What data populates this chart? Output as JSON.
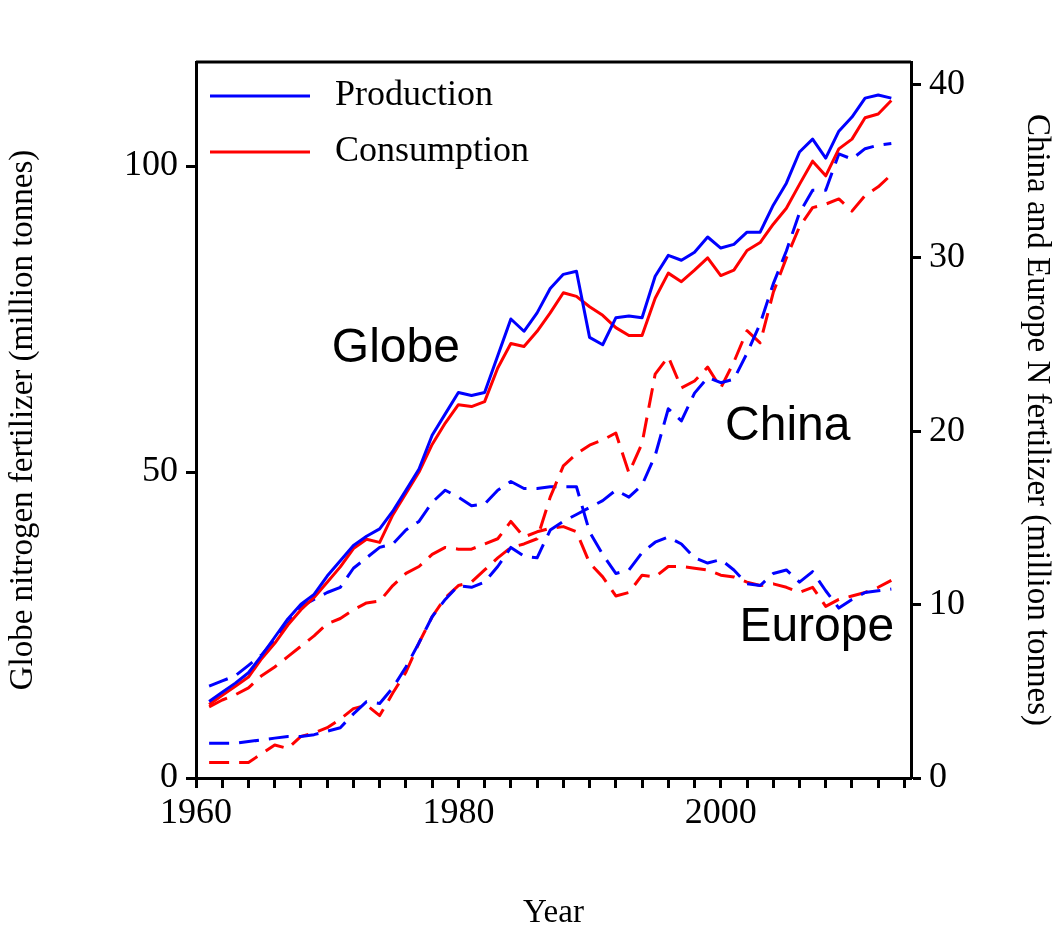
{
  "chart_data": {
    "type": "line",
    "xlabel": "Year",
    "ylabel": "Globe nitrogen fertilizer (million tonnes)",
    "y2label": "China and Europe N fertilizer (million tonnes)",
    "x": [
      1961,
      1962,
      1963,
      1964,
      1965,
      1966,
      1967,
      1968,
      1969,
      1970,
      1971,
      1972,
      1973,
      1974,
      1975,
      1976,
      1977,
      1978,
      1979,
      1980,
      1981,
      1982,
      1983,
      1984,
      1985,
      1986,
      1987,
      1988,
      1989,
      1990,
      1991,
      1992,
      1993,
      1994,
      1995,
      1996,
      1997,
      1998,
      1999,
      2000,
      2001,
      2002,
      2003,
      2004,
      2005,
      2006,
      2007,
      2008,
      2009,
      2010,
      2011,
      2012,
      2013
    ],
    "xlim": [
      1960,
      2014.5
    ],
    "xticks": [
      1960,
      {
        "value": 1962,
        "label": null
      },
      {
        "value": 1964,
        "label": null
      },
      {
        "value": 1966,
        "label": null
      },
      {
        "value": 1968,
        "label": null
      },
      {
        "value": 1970,
        "label": null
      },
      {
        "value": 1972,
        "label": null
      },
      {
        "value": 1974,
        "label": null
      },
      {
        "value": 1976,
        "label": null
      },
      {
        "value": 1978,
        "label": null
      },
      1980,
      {
        "value": 1982,
        "label": null
      },
      {
        "value": 1984,
        "label": null
      },
      {
        "value": 1986,
        "label": null
      },
      {
        "value": 1988,
        "label": null
      },
      {
        "value": 1990,
        "label": null
      },
      {
        "value": 1992,
        "label": null
      },
      {
        "value": 1994,
        "label": null
      },
      {
        "value": 1996,
        "label": null
      },
      {
        "value": 1998,
        "label": null
      },
      2000,
      {
        "value": 2002,
        "label": null
      },
      {
        "value": 2004,
        "label": null
      },
      {
        "value": 2006,
        "label": null
      },
      {
        "value": 2008,
        "label": null
      },
      {
        "value": 2010,
        "label": null
      },
      {
        "value": 2012,
        "label": null
      },
      {
        "value": 2014,
        "label": null
      }
    ],
    "ylim": [
      0,
      117
    ],
    "yticks": [
      0,
      50,
      100
    ],
    "y2lim": [
      0,
      41.3
    ],
    "y2ticks": [
      0,
      10,
      20,
      30,
      40
    ],
    "grid": false,
    "legend": "top left",
    "marker": "none",
    "annotations": [
      "Globe",
      "China",
      "Europe"
    ],
    "series": [
      {
        "name": "Production",
        "color": "#0000ff",
        "line_style": "solid",
        "values": [
          12.5,
          14,
          15.5,
          17.2,
          20,
          23,
          26,
          28.4,
          30,
          33,
          35.5,
          38,
          39.5,
          40.7,
          43.6,
          47,
          50.5,
          56,
          59.5,
          63,
          62.5,
          63,
          69,
          75,
          73,
          76,
          80,
          82.3,
          82.8,
          72,
          70.8,
          75.2,
          75.5,
          75.2,
          82,
          85.4,
          84.6,
          85.9,
          88.4,
          86.6,
          87.2,
          89.2,
          89.2,
          93.6,
          97.2,
          102.3,
          104.4,
          101.3,
          105.7,
          108,
          111.1,
          111.6,
          111.1
        ]
      },
      {
        "name": "Consumption",
        "color": "#ff0000",
        "line_style": "solid",
        "values": [
          12,
          13.5,
          15,
          16.5,
          19.5,
          22,
          25,
          27.5,
          29.5,
          32,
          34.5,
          37.5,
          39,
          38.5,
          43,
          46.5,
          50,
          54.5,
          58,
          61,
          60.7,
          61.5,
          67,
          71,
          70.5,
          73,
          76,
          79.3,
          78.7,
          77,
          75.6,
          73.6,
          72.3,
          72.3,
          78.4,
          82.5,
          81.1,
          83,
          85,
          82.1,
          83,
          86.2,
          87.5,
          90.5,
          93.1,
          97,
          100.8,
          98.4,
          102.8,
          104.4,
          107.9,
          108.5,
          110.7
        ]
      },
      {
        "color": "#0000ff",
        "line_style": "dashed",
        "axis": "y2",
        "values": [
          2.0,
          2.0,
          2.0,
          2.1,
          2.2,
          2.3,
          2.4,
          2.4,
          2.5,
          2.7,
          2.9,
          3.7,
          4.4,
          4.3,
          5.2,
          6.4,
          7.8,
          9.3,
          10.3,
          11.1,
          11.0,
          11.3,
          12.2,
          13.3,
          12.8,
          12.7,
          14.3,
          14.8,
          15.2,
          15.6,
          16.0,
          16.6,
          16.2,
          16.9,
          18.6,
          21.3,
          20.6,
          22.2,
          23.1,
          22.8,
          23.0,
          24.5,
          26.2,
          28.5,
          30.4,
          32.6,
          33.9,
          33.9,
          36.0,
          35.7,
          36.3,
          36.5,
          36.6
        ]
      },
      {
        "color": "#ff0000",
        "line_style": "dashed",
        "axis": "y2",
        "values": [
          0.9,
          0.9,
          0.9,
          0.9,
          1.4,
          1.9,
          1.7,
          2.4,
          2.6,
          2.9,
          3.4,
          4.0,
          4.2,
          3.6,
          4.9,
          6.1,
          7.8,
          9.3,
          10.4,
          11.1,
          11.3,
          12.0,
          12.7,
          13.3,
          13.5,
          13.8,
          16.2,
          18.0,
          18.7,
          19.2,
          19.5,
          19.9,
          17.6,
          19.3,
          23.3,
          24.3,
          22.5,
          22.9,
          23.7,
          22.5,
          24.0,
          25.8,
          25.1,
          28.0,
          30.0,
          31.8,
          32.9,
          33.1,
          33.4,
          32.7,
          33.6,
          34.1,
          34.8
        ]
      },
      {
        "color": "#0000ff",
        "line_style": "dashed",
        "axis": "y2",
        "values": [
          5.3,
          5.6,
          5.9,
          6.5,
          7.1,
          8.0,
          8.9,
          9.9,
          10.3,
          10.7,
          11.0,
          12.1,
          12.7,
          13.3,
          13.5,
          14.3,
          14.8,
          15.9,
          16.6,
          16.2,
          15.7,
          15.8,
          16.6,
          17.1,
          16.7,
          16.7,
          16.8,
          16.8,
          16.8,
          14.2,
          12.9,
          11.8,
          12.0,
          13.0,
          13.6,
          13.9,
          13.5,
          12.7,
          12.4,
          12.6,
          12.0,
          11.2,
          11.1,
          11.8,
          12.0,
          11.3,
          11.9,
          10.8,
          9.8,
          10.3,
          10.7,
          10.8,
          10.9
        ]
      },
      {
        "color": "#ff0000",
        "line_style": "dashed",
        "axis": "y2",
        "values": [
          4.1,
          4.5,
          4.8,
          5.2,
          5.9,
          6.4,
          7.0,
          7.6,
          8.2,
          8.9,
          9.2,
          9.7,
          10.1,
          10.2,
          11.1,
          11.8,
          12.2,
          12.9,
          13.3,
          13.2,
          13.2,
          13.5,
          13.8,
          14.8,
          13.9,
          14.2,
          14.4,
          14.5,
          14.2,
          12.4,
          11.6,
          10.5,
          10.7,
          11.7,
          11.6,
          12.2,
          12.2,
          12.1,
          12.0,
          11.7,
          11.6,
          11.3,
          11.1,
          11.2,
          11.0,
          10.7,
          11.0,
          9.9,
          10.3,
          10.5,
          10.7,
          11.0,
          11.4
        ]
      }
    ]
  }
}
